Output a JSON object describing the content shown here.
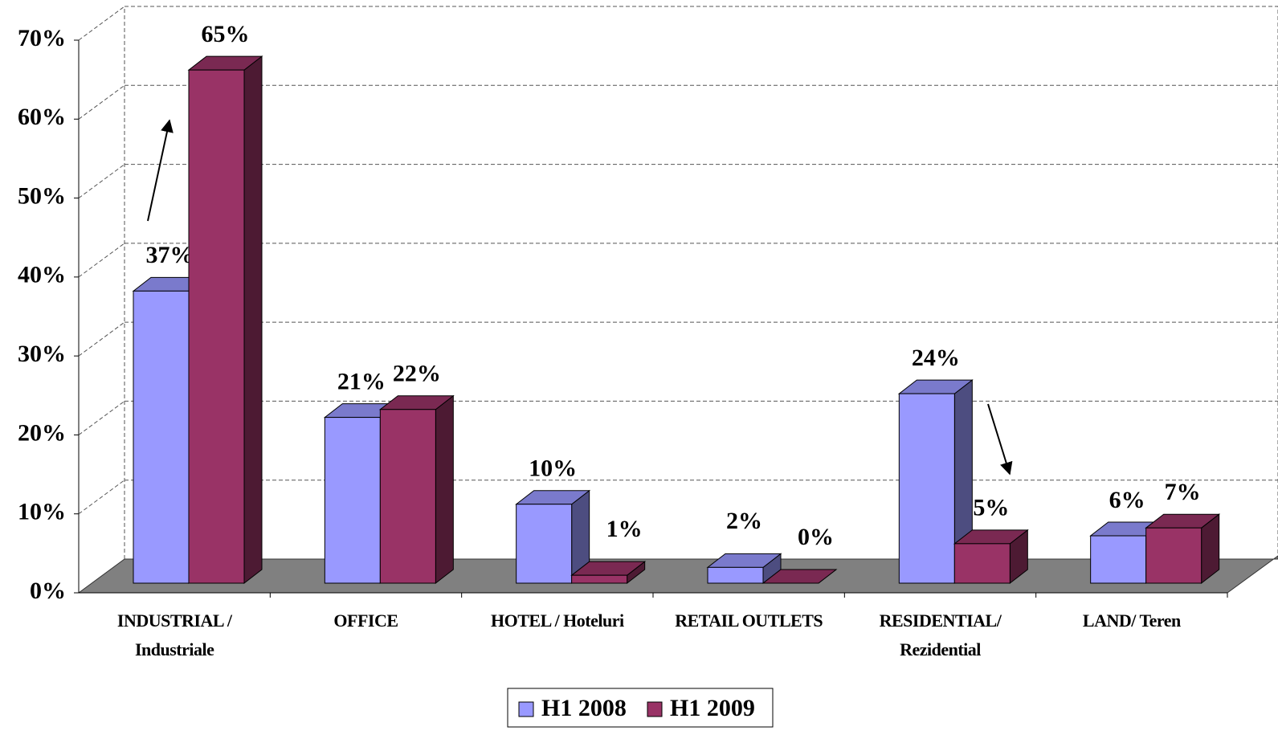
{
  "chart_data": {
    "type": "bar3d",
    "categories": [
      "INDUSTRIAL /\nIndustriale",
      "OFFICE",
      "HOTEL / Hoteluri",
      "RETAIL OUTLETS",
      "RESIDENTIAL/\nRezidential",
      "LAND/ Teren"
    ],
    "series": [
      {
        "name": "H1 2008",
        "color": "#9999ff",
        "values": [
          37,
          21,
          10,
          2,
          24,
          6
        ],
        "value_labels": [
          "37%",
          "21%",
          "10%",
          "2%",
          "24%",
          "6%"
        ]
      },
      {
        "name": "H1 2009",
        "color": "#993366",
        "values": [
          65,
          22,
          1,
          0,
          5,
          7
        ],
        "value_labels": [
          "65%",
          "22%",
          "1%",
          "0%",
          "5%",
          "7%"
        ]
      }
    ],
    "ylim": [
      0,
      70
    ],
    "yticks": [
      {
        "value": 0,
        "label": "0%"
      },
      {
        "value": 10,
        "label": "10%"
      },
      {
        "value": 20,
        "label": "20%"
      },
      {
        "value": 30,
        "label": "30%"
      },
      {
        "value": 40,
        "label": "40%"
      },
      {
        "value": 50,
        "label": "50%"
      },
      {
        "value": 60,
        "label": "60%"
      },
      {
        "value": 70,
        "label": "70%"
      }
    ],
    "grid": true,
    "legend": "bottom"
  }
}
